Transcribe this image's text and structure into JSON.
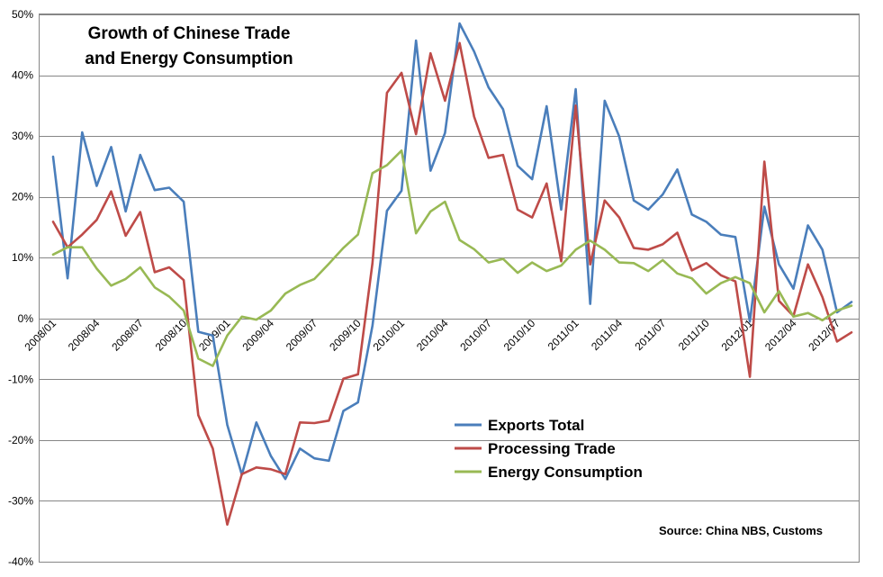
{
  "chart_data": {
    "type": "line",
    "title_lines": [
      "Growth of Chinese Trade",
      "and Energy Consumption"
    ],
    "source": "Source: China NBS, Customs",
    "ylim": [
      -40,
      50
    ],
    "yticks": [
      -40,
      -30,
      -20,
      -10,
      0,
      10,
      20,
      30,
      40,
      50
    ],
    "ytick_labels": [
      "-40%",
      "-30%",
      "-20%",
      "-10%",
      "0%",
      "10%",
      "20%",
      "30%",
      "40%",
      "50%"
    ],
    "x": [
      "2008/01",
      "2008/02",
      "2008/03",
      "2008/04",
      "2008/05",
      "2008/06",
      "2008/07",
      "2008/08",
      "2008/09",
      "2008/10",
      "2008/11",
      "2008/12",
      "2009/01",
      "2009/02",
      "2009/03",
      "2009/04",
      "2009/05",
      "2009/06",
      "2009/07",
      "2009/08",
      "2009/09",
      "2009/10",
      "2009/11",
      "2009/12",
      "2010/01",
      "2010/02",
      "2010/03",
      "2010/04",
      "2010/05",
      "2010/06",
      "2010/07",
      "2010/08",
      "2010/09",
      "2010/10",
      "2010/11",
      "2010/12",
      "2011/01",
      "2011/02",
      "2011/03",
      "2011/04",
      "2011/05",
      "2011/06",
      "2011/07",
      "2011/08",
      "2011/09",
      "2011/10",
      "2011/11",
      "2011/12",
      "2012/01",
      "2012/02",
      "2012/03",
      "2012/04",
      "2012/05",
      "2012/06",
      "2012/07",
      "2012/08"
    ],
    "xtick_labels": [
      "2008/01",
      "2008/04",
      "2008/07",
      "2008/10",
      "2009/01",
      "2009/04",
      "2009/07",
      "2009/10",
      "2010/01",
      "2010/04",
      "2010/07",
      "2010/10",
      "2011/01",
      "2011/04",
      "2011/07",
      "2011/10",
      "2012/01",
      "2012/04",
      "2012/07"
    ],
    "grid": true,
    "legend_position": "lower-center",
    "series": [
      {
        "name": "Exports Total",
        "color": "#4a7ebb",
        "values": [
          26.6,
          6.6,
          30.6,
          21.8,
          28.2,
          17.6,
          26.9,
          21.1,
          21.5,
          19.2,
          -2.2,
          -2.8,
          -17.5,
          -25.7,
          -17.1,
          -22.6,
          -26.4,
          -21.4,
          -23.0,
          -23.4,
          -15.2,
          -13.8,
          -1.2,
          17.7,
          21.0,
          45.7,
          24.3,
          30.5,
          48.5,
          43.9,
          38.0,
          34.4,
          25.1,
          22.9,
          34.9,
          17.9,
          37.7,
          2.4,
          35.8,
          29.9,
          19.4,
          17.9,
          20.4,
          24.5,
          17.1,
          15.9,
          13.8,
          13.4,
          -0.5,
          18.4,
          8.9,
          4.9,
          15.3,
          11.3,
          1.0,
          2.7
        ]
      },
      {
        "name": "Processing Trade",
        "color": "#be4b48",
        "values": [
          15.9,
          11.7,
          13.8,
          16.2,
          20.9,
          13.6,
          17.5,
          7.6,
          8.4,
          6.3,
          -15.9,
          -21.4,
          -33.9,
          -25.6,
          -24.5,
          -24.8,
          -25.6,
          -17.1,
          -17.2,
          -16.8,
          -9.9,
          -9.2,
          9.1,
          37.1,
          40.4,
          30.3,
          43.6,
          35.8,
          45.3,
          33.2,
          26.4,
          26.9,
          17.9,
          16.6,
          22.2,
          9.4,
          35.0,
          8.9,
          19.4,
          16.6,
          11.6,
          11.3,
          12.2,
          14.1,
          7.9,
          9.1,
          7.1,
          6.1,
          -9.6,
          25.8,
          2.9,
          0.4,
          8.9,
          3.5,
          -3.8,
          -2.3
        ]
      },
      {
        "name": "Energy Consumption",
        "color": "#98b954",
        "values": [
          10.5,
          11.7,
          11.7,
          8.2,
          5.4,
          6.5,
          8.4,
          5.1,
          3.6,
          1.3,
          -6.6,
          -7.8,
          -2.8,
          0.3,
          -0.2,
          1.3,
          4.1,
          5.5,
          6.5,
          9.0,
          11.6,
          13.8,
          23.9,
          25.2,
          27.6,
          14.0,
          17.6,
          19.2,
          12.9,
          11.4,
          9.2,
          9.8,
          7.5,
          9.2,
          7.8,
          8.7,
          11.3,
          12.8,
          11.3,
          9.2,
          9.1,
          7.8,
          9.6,
          7.4,
          6.6,
          4.1,
          5.8,
          6.8,
          5.8,
          1.0,
          4.5,
          0.3,
          0.9,
          -0.3,
          1.3,
          2.1
        ]
      }
    ]
  }
}
